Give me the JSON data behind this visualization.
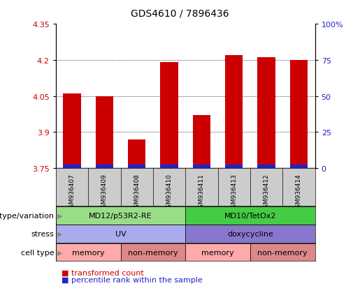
{
  "title": "GDS4610 / 7896436",
  "samples": [
    "GSM936407",
    "GSM936409",
    "GSM936408",
    "GSM936410",
    "GSM936411",
    "GSM936413",
    "GSM936412",
    "GSM936414"
  ],
  "transformed_count": [
    4.06,
    4.05,
    3.87,
    4.19,
    3.97,
    4.22,
    4.21,
    4.2
  ],
  "percentile_rank_pct": [
    5,
    5,
    4,
    7,
    6,
    5,
    5,
    5
  ],
  "bar_base": 3.75,
  "ylim_left": [
    3.75,
    4.35
  ],
  "ylim_right": [
    0,
    100
  ],
  "yticks_left": [
    3.75,
    3.9,
    4.05,
    4.2,
    4.35
  ],
  "yticks_right": [
    0,
    25,
    50,
    75,
    100
  ],
  "ytick_right_labels": [
    "0",
    "25",
    "50",
    "75",
    "100%"
  ],
  "grid_lines": [
    3.9,
    4.05,
    4.2
  ],
  "bar_color": "#cc0000",
  "percentile_color": "#2222cc",
  "bar_width": 0.55,
  "plot_bg_color": "#ffffff",
  "sample_area_bg": "#cccccc",
  "genotype_groups": [
    {
      "label": "MD12/p53R2-RE",
      "start": 0,
      "end": 4,
      "color": "#99dd88"
    },
    {
      "label": "MD10/TetOx2",
      "start": 4,
      "end": 8,
      "color": "#44cc44"
    }
  ],
  "stress_groups": [
    {
      "label": "UV",
      "start": 0,
      "end": 4,
      "color": "#aaaaee"
    },
    {
      "label": "doxycycline",
      "start": 4,
      "end": 8,
      "color": "#8877cc"
    }
  ],
  "celltype_groups": [
    {
      "label": "memory",
      "start": 0,
      "end": 2,
      "color": "#ffaaaa"
    },
    {
      "label": "non-memory",
      "start": 2,
      "end": 4,
      "color": "#dd8888"
    },
    {
      "label": "memory",
      "start": 4,
      "end": 6,
      "color": "#ffaaaa"
    },
    {
      "label": "non-memory",
      "start": 6,
      "end": 8,
      "color": "#dd8888"
    }
  ],
  "row_labels": [
    "genotype/variation",
    "stress",
    "cell type"
  ],
  "legend_items": [
    {
      "label": "transformed count",
      "color": "#cc0000"
    },
    {
      "label": "percentile rank within the sample",
      "color": "#2222cc"
    }
  ],
  "bg_color": "#ffffff",
  "tick_label_color_left": "#cc0000",
  "tick_label_color_right": "#2222cc",
  "title_fontsize": 10,
  "bar_label_fontsize": 6.5,
  "row_label_fontsize": 8,
  "annotation_fontsize": 8
}
